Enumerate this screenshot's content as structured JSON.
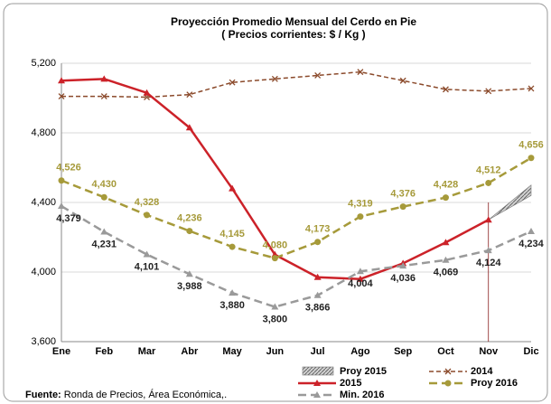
{
  "chart_data": {
    "type": "line",
    "title": "Proyección Promedio Mensual del Cerdo en Pie",
    "subtitle": "( Precios corrientes: $ / Kg )",
    "categories": [
      "Ene",
      "Feb",
      "Mar",
      "Abr",
      "May",
      "Jun",
      "Jul",
      "Ago",
      "Sep",
      "Oct",
      "Nov",
      "Dic"
    ],
    "ylim": [
      3600,
      5200
    ],
    "yticks": [
      {
        "value": 3600,
        "label": "3,600"
      },
      {
        "value": 4000,
        "label": "4,000"
      },
      {
        "value": 4400,
        "label": "4,400"
      },
      {
        "value": 4800,
        "label": "4,800"
      },
      {
        "value": 5200,
        "label": "5,200"
      }
    ],
    "grid": true,
    "series": [
      {
        "name": "Proy 2015",
        "color": "#9a9a9a",
        "kind": "area",
        "values": [
          null,
          null,
          null,
          null,
          null,
          null,
          null,
          null,
          null,
          null,
          4300,
          4500
        ],
        "low": [
          null,
          null,
          null,
          null,
          null,
          null,
          null,
          null,
          null,
          null,
          4300,
          4440
        ]
      },
      {
        "name": "2014",
        "color": "#8b4a2b",
        "dash": true,
        "marker": "x",
        "values": [
          5010,
          5010,
          5005,
          5020,
          5090,
          5110,
          5130,
          5150,
          5100,
          5050,
          5040,
          5055
        ]
      },
      {
        "name": "2015",
        "color": "#cc2229",
        "marker": "triangle",
        "values": [
          5100,
          5110,
          5030,
          4830,
          4480,
          4100,
          3970,
          3960,
          4050,
          4170,
          4300,
          null
        ]
      },
      {
        "name": "Proy 2016",
        "color": "#a69a3a",
        "dash": true,
        "marker": "circle",
        "values": [
          4526,
          4430,
          4328,
          4236,
          4145,
          4080,
          4173,
          4319,
          4376,
          4428,
          4512,
          4656
        ],
        "value_labels": [
          "4,526",
          "4,430",
          "4,328",
          "4,236",
          "4,145",
          "4,080",
          "4,173",
          "4,319",
          "4,376",
          "4,428",
          "4,512",
          "4,656"
        ],
        "label_side": "above"
      },
      {
        "name": "Min. 2016",
        "color": "#9a9a9a",
        "dash": true,
        "marker": "triangle",
        "values": [
          4379,
          4231,
          4101,
          3988,
          3880,
          3800,
          3866,
          4004,
          4036,
          4069,
          4124,
          4234
        ],
        "value_labels": [
          "4,379",
          "4,231",
          "4,101",
          "3,988",
          "3,880",
          "3,800",
          "3,866",
          "4,004",
          "4,036",
          "4,069",
          "4,124",
          "4,234"
        ],
        "label_side": "below"
      }
    ],
    "source_label": "Fuente:",
    "source": " Ronda de Precios, Área Económica,."
  }
}
